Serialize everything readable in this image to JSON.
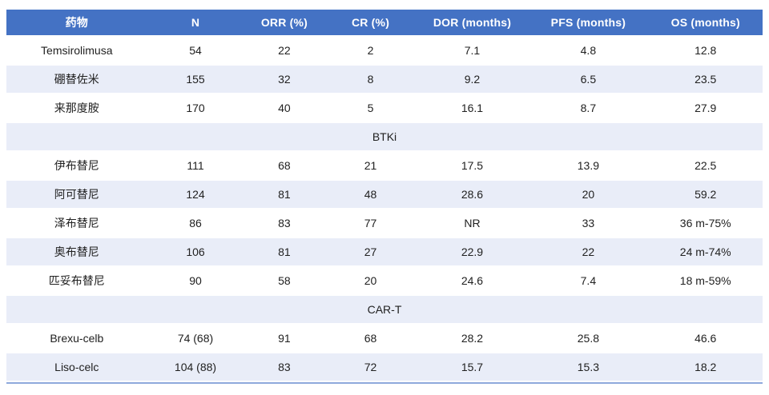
{
  "chart_data": {
    "type": "table",
    "columns": [
      "药物",
      "N",
      "ORR (%)",
      "CR (%)",
      "DOR (months)",
      "PFS (months)",
      "OS (months)"
    ],
    "rows": [
      {
        "type": "data",
        "cells": [
          "Temsirolimusa",
          "54",
          "22",
          "2",
          "7.1",
          "4.8",
          "12.8"
        ]
      },
      {
        "type": "data",
        "cells": [
          "硼替佐米",
          "155",
          "32",
          "8",
          "9.2",
          "6.5",
          "23.5"
        ]
      },
      {
        "type": "data",
        "cells": [
          "来那度胺",
          "170",
          "40",
          "5",
          "16.1",
          "8.7",
          "27.9"
        ]
      },
      {
        "type": "section",
        "label": "BTKi"
      },
      {
        "type": "data",
        "cells": [
          "伊布替尼",
          "111",
          "68",
          "21",
          "17.5",
          "13.9",
          "22.5"
        ]
      },
      {
        "type": "data",
        "cells": [
          "阿可替尼",
          "124",
          "81",
          "48",
          "28.6",
          "20",
          "59.2"
        ]
      },
      {
        "type": "data",
        "cells": [
          "泽布替尼",
          "86",
          "83",
          "77",
          "NR",
          "33",
          "36 m-75%"
        ]
      },
      {
        "type": "data",
        "cells": [
          "奥布替尼",
          "106",
          "81",
          "27",
          "22.9",
          "22",
          "24 m-74%"
        ]
      },
      {
        "type": "data",
        "cells": [
          "匹妥布替尼",
          "90",
          "58",
          "20",
          "24.6",
          "7.4",
          "18 m-59%"
        ]
      },
      {
        "type": "section",
        "label": "CAR-T"
      },
      {
        "type": "data",
        "cells": [
          "Brexu-celb",
          "74 (68)",
          "91",
          "68",
          "28.2",
          "25.8",
          "46.6"
        ]
      },
      {
        "type": "data",
        "cells": [
          "Liso-celc",
          "104 (88)",
          "83",
          "72",
          "15.7",
          "15.3",
          "18.2"
        ]
      }
    ]
  },
  "colors": {
    "header_bg": "#4472C4",
    "header_text": "#FFFFFF",
    "stripe_bg": "#E9EDF8",
    "row_bg": "#FFFFFF",
    "text_color": "#212121",
    "bottom_border": "#8EA9DC"
  }
}
